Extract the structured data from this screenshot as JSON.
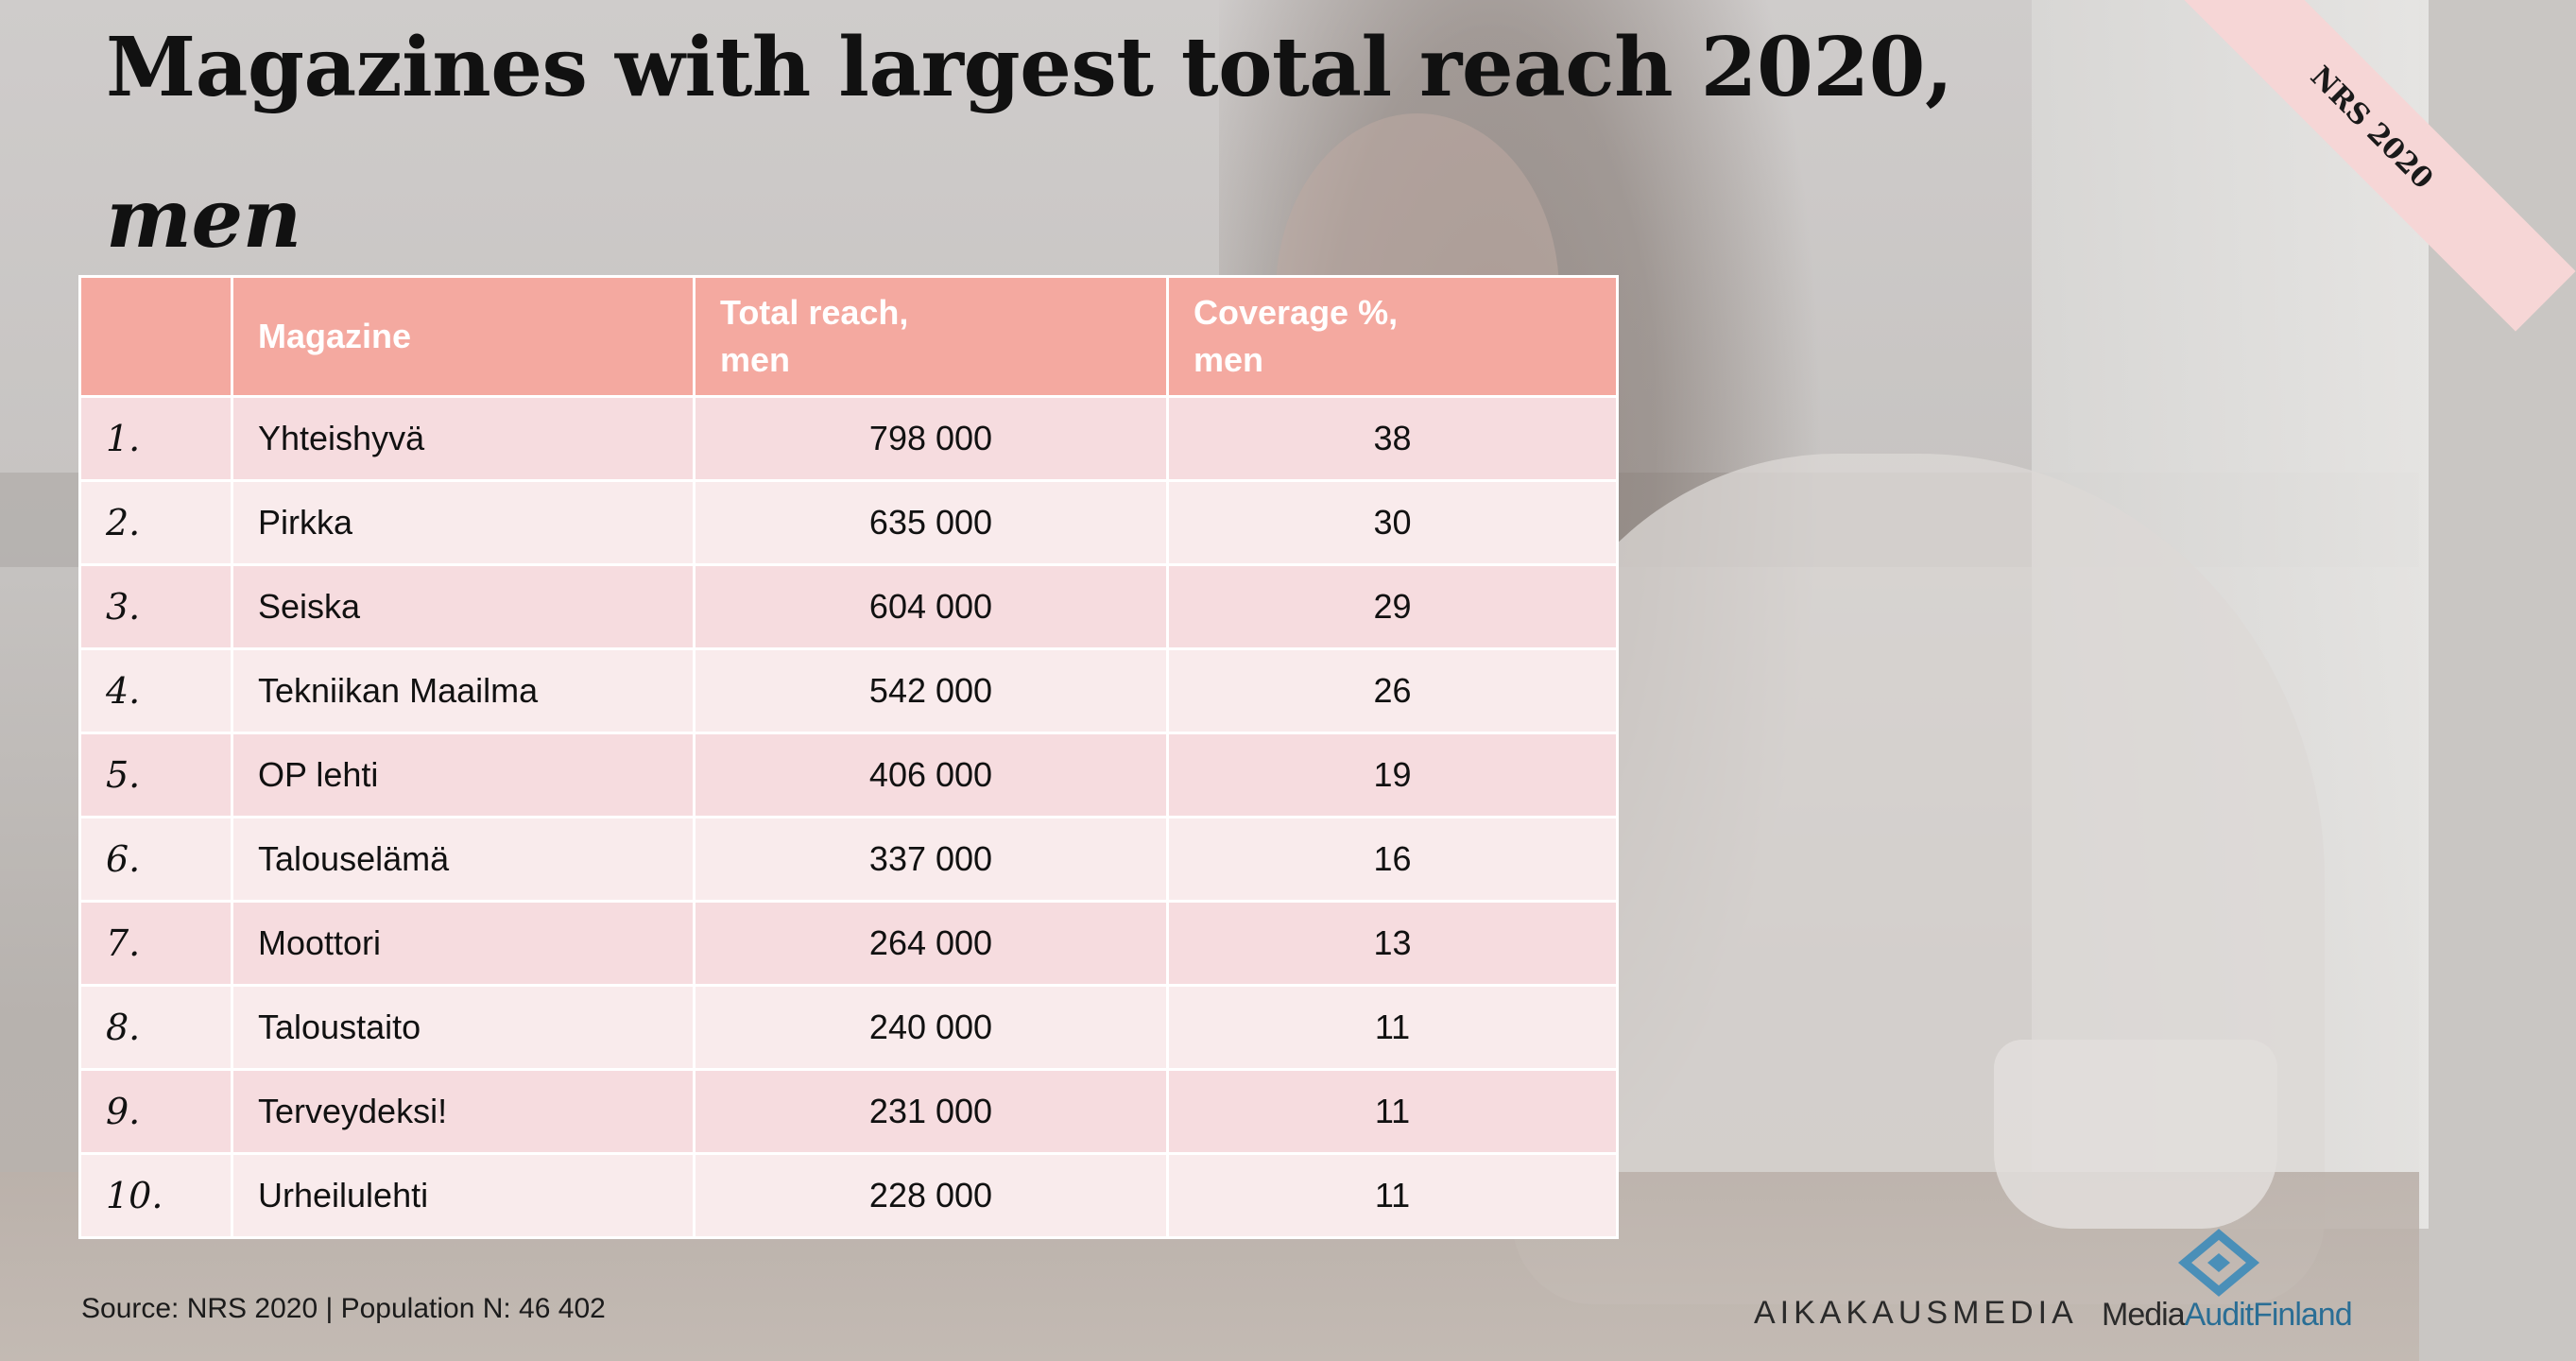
{
  "title": {
    "line1": "Magazines with largest total reach 2020,",
    "line2": "men"
  },
  "ribbon": "NRS 2020",
  "table": {
    "headers": {
      "rank": "",
      "magazine": "Magazine",
      "reach": [
        "Total reach,",
        "men"
      ],
      "coverage": [
        "Coverage %,",
        "men"
      ]
    },
    "rows": [
      {
        "rank": "1.",
        "magazine": "Yhteishyvä",
        "reach": "798 000",
        "coverage": "38"
      },
      {
        "rank": "2.",
        "magazine": "Pirkka",
        "reach": "635 000",
        "coverage": "30"
      },
      {
        "rank": "3.",
        "magazine": "Seiska",
        "reach": "604 000",
        "coverage": "29"
      },
      {
        "rank": "4.",
        "magazine": "Tekniikan Maailma",
        "reach": "542 000",
        "coverage": "26"
      },
      {
        "rank": "5.",
        "magazine": "OP lehti",
        "reach": "406 000",
        "coverage": "19"
      },
      {
        "rank": "6.",
        "magazine": "Talouselämä",
        "reach": "337 000",
        "coverage": "16"
      },
      {
        "rank": "7.",
        "magazine": "Moottori",
        "reach": "264 000",
        "coverage": "13"
      },
      {
        "rank": "8.",
        "magazine": "Taloustaito",
        "reach": "240 000",
        "coverage": "11"
      },
      {
        "rank": "9.",
        "magazine": "Terveydeksi!",
        "reach": "231 000",
        "coverage": "11"
      },
      {
        "rank": "10.",
        "magazine": "Urheilulehti",
        "reach": "228 000",
        "coverage": "11"
      }
    ]
  },
  "footer": {
    "source": "Source: NRS 2020  |  Population N: 46 402"
  },
  "logos": {
    "aikakausmedia": "AIKAKAUSMEDIA",
    "maf_part1": "Media",
    "maf_part2": "AuditFinland"
  },
  "colors": {
    "header": "#f4a9a0",
    "row_odd": "#f6dcdf",
    "row_even": "#f9ebec",
    "ribbon": "#f6d6d6",
    "maf_blue": "#2a6e95"
  }
}
